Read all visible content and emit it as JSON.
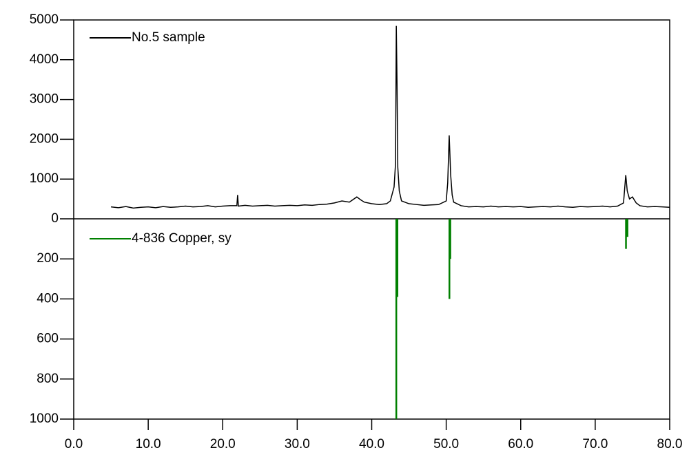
{
  "chart_data": [
    {
      "type": "line",
      "x": [
        5,
        6,
        7,
        8,
        9,
        10,
        11,
        12,
        13,
        14,
        15,
        16,
        17,
        18,
        19,
        20,
        21,
        21.9,
        22,
        22.1,
        23,
        24,
        25,
        26,
        27,
        28,
        29,
        30,
        31,
        32,
        33,
        34,
        35,
        36,
        37,
        38,
        38.5,
        39,
        40,
        41,
        42,
        42.5,
        43,
        43.2,
        43.3,
        43.4,
        43.5,
        43.7,
        44,
        45,
        46,
        47,
        48,
        49,
        50,
        50.2,
        50.4,
        50.6,
        50.8,
        51,
        52,
        53,
        54,
        55,
        56,
        57,
        58,
        59,
        60,
        61,
        62,
        63,
        64,
        65,
        66,
        67,
        68,
        69,
        70,
        71,
        72,
        73,
        73.8,
        74.1,
        74.3,
        74.6,
        75,
        75.5,
        76,
        77,
        78,
        79,
        80
      ],
      "series": [
        {
          "name": "No.5 sample",
          "color": "#000000",
          "values": [
            300,
            280,
            310,
            270,
            290,
            300,
            280,
            310,
            290,
            300,
            320,
            300,
            310,
            330,
            300,
            320,
            330,
            330,
            600,
            320,
            340,
            320,
            330,
            340,
            320,
            330,
            340,
            330,
            350,
            340,
            360,
            370,
            400,
            450,
            420,
            550,
            480,
            420,
            380,
            360,
            380,
            450,
            800,
            1400,
            4850,
            3400,
            1300,
            700,
            450,
            380,
            360,
            340,
            350,
            360,
            450,
            900,
            2100,
            1100,
            600,
            420,
            330,
            300,
            310,
            300,
            320,
            300,
            310,
            300,
            310,
            290,
            300,
            310,
            300,
            320,
            300,
            290,
            310,
            300,
            310,
            320,
            300,
            320,
            400,
            1100,
            700,
            500,
            550,
            400,
            330,
            300,
            310,
            300,
            290
          ]
        }
      ],
      "xlim": [
        0,
        80
      ],
      "ylim": [
        0,
        5000
      ],
      "yticks": [
        0,
        1000,
        2000,
        3000,
        4000,
        5000
      ]
    },
    {
      "type": "stick",
      "x": [
        43.3,
        43.45,
        50.43,
        50.55,
        74.13,
        74.33
      ],
      "series": [
        {
          "name": "4-836 Copper, sy",
          "color": "#008000",
          "values": [
            1000,
            390,
            400,
            200,
            150,
            90
          ]
        }
      ],
      "xlim": [
        0,
        80
      ],
      "ylim": [
        0,
        1000
      ],
      "inverted": true,
      "yticks": [
        200,
        400,
        600,
        800,
        1000
      ],
      "xticks": [
        {
          "value": 0,
          "label": "0.0"
        },
        {
          "value": 10,
          "label": "10.0"
        },
        {
          "value": 20,
          "label": "20.0"
        },
        {
          "value": 30,
          "label": "30.0"
        },
        {
          "value": 40,
          "label": "40.0"
        },
        {
          "value": 50,
          "label": "50.0"
        },
        {
          "value": 60,
          "label": "60.0"
        },
        {
          "value": 70,
          "label": "70.0"
        },
        {
          "value": 80,
          "label": "80.0"
        }
      ]
    }
  ]
}
